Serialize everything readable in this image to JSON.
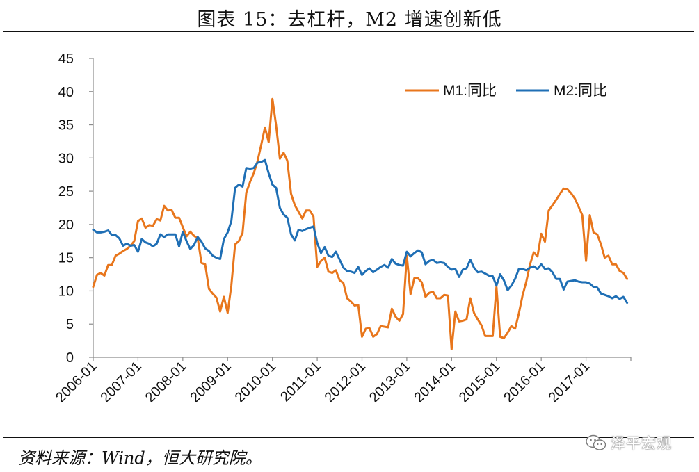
{
  "header": {
    "title": "图表 15：去杠杆，M2 增速创新低"
  },
  "footer": {
    "source": "资料来源：Wind，恒大研究院。",
    "watermark": "泽平宏观",
    "watermark_icon": "wechat-icon"
  },
  "chart_data": {
    "type": "line",
    "ylim": [
      0,
      45
    ],
    "yticks": [
      0,
      5,
      10,
      15,
      20,
      25,
      30,
      35,
      40,
      45
    ],
    "xlim": [
      "2006-01",
      "2017-12"
    ],
    "xticks": [
      "2006-01",
      "2007-01",
      "2008-01",
      "2009-01",
      "2010-01",
      "2011-01",
      "2012-01",
      "2013-01",
      "2014-01",
      "2015-01",
      "2016-01",
      "2017-01"
    ],
    "grid": false,
    "legend_position": "top-right",
    "series": [
      {
        "name": "M1:同比",
        "color": "#E8761C",
        "start": "2006-01",
        "values": [
          10.6,
          12.4,
          12.7,
          12.3,
          13.9,
          13.9,
          15.3,
          15.6,
          16.0,
          16.3,
          16.8,
          17.5,
          20.5,
          20.9,
          19.5,
          19.9,
          19.8,
          20.8,
          20.6,
          22.8,
          22.1,
          22.2,
          21.0,
          21.0,
          19.6,
          18.2,
          18.9,
          18.3,
          17.9,
          14.2,
          14.0,
          10.3,
          9.6,
          9.0,
          6.9,
          9.1,
          6.7,
          10.8,
          17.0,
          17.5,
          18.7,
          24.8,
          26.4,
          27.7,
          29.5,
          32.0,
          34.6,
          32.4,
          38.9,
          34.9,
          29.9,
          30.8,
          29.6,
          24.6,
          22.9,
          21.9,
          20.9,
          22.1,
          22.1,
          21.2,
          13.6,
          14.5,
          15.0,
          12.9,
          12.7,
          13.1,
          11.6,
          11.2,
          8.9,
          8.4,
          7.8,
          7.9,
          3.1,
          4.3,
          4.4,
          3.1,
          3.5,
          4.7,
          4.6,
          4.5,
          7.3,
          6.1,
          5.5,
          6.5,
          15.3,
          9.5,
          11.9,
          11.9,
          11.3,
          9.1,
          9.7,
          9.9,
          8.9,
          8.9,
          9.4,
          9.3,
          1.2,
          6.9,
          5.4,
          5.5,
          5.7,
          8.9,
          6.7,
          5.7,
          4.8,
          3.2,
          3.2,
          3.2,
          10.6,
          3.1,
          2.9,
          3.7,
          4.7,
          4.3,
          6.6,
          9.3,
          11.4,
          14.0,
          15.8,
          15.2,
          18.6,
          17.4,
          22.1,
          22.9,
          23.7,
          24.6,
          25.4,
          25.3,
          24.7,
          23.9,
          22.7,
          21.4,
          14.5,
          21.4,
          18.8,
          18.5,
          17.0,
          15.0,
          15.3,
          14.0,
          14.0,
          13.0,
          12.7,
          11.8
        ]
      },
      {
        "name": "M2:同比",
        "color": "#1F6FB5",
        "start": "2006-01",
        "values": [
          19.2,
          18.8,
          18.8,
          18.9,
          19.1,
          18.4,
          18.4,
          17.9,
          16.8,
          17.1,
          16.8,
          16.9,
          15.9,
          17.8,
          17.3,
          17.1,
          16.7,
          17.1,
          18.5,
          18.1,
          18.5,
          18.5,
          18.5,
          16.7,
          18.9,
          17.5,
          16.3,
          16.9,
          18.1,
          17.4,
          16.4,
          16.0,
          15.3,
          15.0,
          14.8,
          17.8,
          18.8,
          20.5,
          25.5,
          26.0,
          25.7,
          28.5,
          28.4,
          28.5,
          29.3,
          29.4,
          29.7,
          27.7,
          26.0,
          25.5,
          22.5,
          21.5,
          21.0,
          18.5,
          17.6,
          19.2,
          19.0,
          19.3,
          19.5,
          19.7,
          17.2,
          15.7,
          16.6,
          15.3,
          15.1,
          15.9,
          14.7,
          13.5,
          13.0,
          12.9,
          12.7,
          13.6,
          12.4,
          13.0,
          13.4,
          12.8,
          13.2,
          13.6,
          13.9,
          13.5,
          14.8,
          14.1,
          13.9,
          13.8,
          15.9,
          15.2,
          15.7,
          16.1,
          15.8,
          14.0,
          14.5,
          14.7,
          14.2,
          14.3,
          14.2,
          13.6,
          13.2,
          13.3,
          12.1,
          13.2,
          13.4,
          14.7,
          13.5,
          12.8,
          12.9,
          12.6,
          12.3,
          12.2,
          10.8,
          12.5,
          11.6,
          10.1,
          10.8,
          11.8,
          13.3,
          13.3,
          13.1,
          13.5,
          13.7,
          13.3,
          14.0,
          13.3,
          13.4,
          12.8,
          11.8,
          11.8,
          10.2,
          11.4,
          11.5,
          11.6,
          11.4,
          11.3,
          11.3,
          11.1,
          10.6,
          10.5,
          9.6,
          9.4,
          9.2,
          8.9,
          9.2,
          8.8,
          9.1,
          8.2
        ]
      }
    ]
  }
}
